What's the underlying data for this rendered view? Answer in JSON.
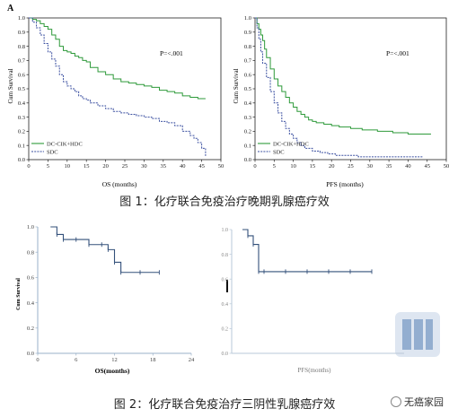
{
  "figure1": {
    "panel_label": "A",
    "caption": "图 1：化疗联合免疫治疗晚期乳腺癌疗效",
    "os": {
      "pvalue": "P=<.001",
      "xlabel": "OS (months)",
      "ylabel": "Cum Survival",
      "legend": [
        "DC-CIK+HDC",
        "SDC"
      ]
    },
    "pfs": {
      "pvalue": "P=<.001",
      "xlabel": "PFS (months)",
      "ylabel": "Cum Survival",
      "legend": [
        "DC-CIK+HDC",
        "SDC"
      ]
    }
  },
  "figure2": {
    "caption": "图 2：化疗联合免疫治疗三阴性乳腺癌疗效",
    "os": {
      "xlabel": "OS(months)",
      "ylabel": "Cum Survival"
    },
    "pfs": {
      "xlabel": "PFS(months)"
    }
  },
  "watermark": "无癌家园",
  "colors": {
    "green": "#2e9a3a",
    "blue": "#3a4fa0",
    "navy": "#33507a"
  },
  "chart_data": [
    {
      "type": "line",
      "title": "",
      "xlabel": "OS (months)",
      "ylabel": "Cum Survival",
      "xlim": [
        0,
        50
      ],
      "ylim": [
        0,
        1
      ],
      "xticks": [
        0,
        5,
        10,
        15,
        20,
        25,
        30,
        35,
        40,
        45,
        50
      ],
      "yticks": [
        0.0,
        0.1,
        0.2,
        0.3,
        0.4,
        0.5,
        0.6,
        0.7,
        0.8,
        0.9,
        1.0
      ],
      "step": true,
      "legend_position": "bottom-left",
      "series": [
        {
          "name": "DC-CIK+HDC",
          "color": "#2e9a3a",
          "x": [
            0,
            1,
            2,
            3,
            4,
            5,
            6,
            7,
            8,
            9,
            10,
            11,
            12,
            13,
            14,
            15,
            16,
            18,
            20,
            22,
            24,
            26,
            28,
            30,
            32,
            34,
            36,
            38,
            40,
            42,
            44,
            46
          ],
          "y": [
            1.0,
            0.99,
            0.98,
            0.96,
            0.94,
            0.92,
            0.88,
            0.85,
            0.8,
            0.77,
            0.76,
            0.75,
            0.73,
            0.72,
            0.7,
            0.69,
            0.65,
            0.62,
            0.6,
            0.57,
            0.55,
            0.54,
            0.53,
            0.52,
            0.51,
            0.49,
            0.48,
            0.47,
            0.45,
            0.44,
            0.43,
            0.43
          ]
        },
        {
          "name": "SDC",
          "color": "#3a4fa0",
          "x": [
            0,
            1,
            2,
            3,
            4,
            5,
            6,
            7,
            8,
            9,
            10,
            11,
            12,
            13,
            14,
            15,
            16,
            18,
            20,
            22,
            24,
            26,
            28,
            30,
            32,
            34,
            36,
            38,
            40,
            42,
            43,
            44,
            45,
            46
          ],
          "y": [
            1.0,
            0.97,
            0.93,
            0.88,
            0.82,
            0.76,
            0.71,
            0.66,
            0.6,
            0.55,
            0.52,
            0.5,
            0.48,
            0.45,
            0.43,
            0.42,
            0.4,
            0.38,
            0.36,
            0.34,
            0.33,
            0.32,
            0.31,
            0.3,
            0.29,
            0.27,
            0.26,
            0.24,
            0.2,
            0.17,
            0.15,
            0.12,
            0.08,
            0.02
          ]
        }
      ]
    },
    {
      "type": "line",
      "title": "",
      "xlabel": "PFS (months)",
      "ylabel": "Cum Survival",
      "xlim": [
        0,
        50
      ],
      "ylim": [
        0,
        1
      ],
      "xticks": [
        0,
        5,
        10,
        15,
        20,
        25,
        30,
        35,
        40,
        45,
        50
      ],
      "yticks": [
        0.0,
        0.1,
        0.2,
        0.3,
        0.4,
        0.5,
        0.6,
        0.7,
        0.8,
        0.9,
        1.0
      ],
      "step": true,
      "legend_position": "bottom-left",
      "series": [
        {
          "name": "DC-CIK+HDC",
          "color": "#2e9a3a",
          "x": [
            0,
            0.5,
            1,
            1.5,
            2,
            2.5,
            3,
            4,
            5,
            6,
            7,
            8,
            9,
            10,
            11,
            12,
            13,
            14,
            15,
            16,
            18,
            20,
            22,
            25,
            28,
            32,
            36,
            40,
            44,
            46
          ],
          "y": [
            1.0,
            0.96,
            0.92,
            0.88,
            0.84,
            0.78,
            0.72,
            0.64,
            0.57,
            0.52,
            0.48,
            0.44,
            0.4,
            0.37,
            0.34,
            0.32,
            0.3,
            0.28,
            0.27,
            0.26,
            0.25,
            0.24,
            0.23,
            0.22,
            0.21,
            0.2,
            0.19,
            0.18,
            0.18,
            0.18
          ]
        },
        {
          "name": "SDC",
          "color": "#3a4fa0",
          "x": [
            0,
            0.5,
            1,
            1.5,
            2,
            3,
            4,
            5,
            6,
            7,
            8,
            9,
            10,
            11,
            12,
            13,
            15,
            17,
            19,
            21,
            24,
            27,
            30,
            35,
            40,
            44
          ],
          "y": [
            1.0,
            0.93,
            0.85,
            0.76,
            0.68,
            0.58,
            0.48,
            0.4,
            0.33,
            0.27,
            0.22,
            0.18,
            0.15,
            0.12,
            0.1,
            0.08,
            0.06,
            0.05,
            0.04,
            0.03,
            0.03,
            0.02,
            0.02,
            0.02,
            0.02,
            0.02
          ]
        }
      ]
    },
    {
      "type": "line",
      "title": "",
      "xlabel": "OS(months)",
      "ylabel": "Cum Survival",
      "xlim": [
        0,
        24
      ],
      "ylim": [
        0,
        1
      ],
      "xticks": [
        0,
        6,
        12,
        18,
        24
      ],
      "yticks": [
        0.0,
        0.2,
        0.4,
        0.6,
        0.8,
        1.0
      ],
      "step": true,
      "series": [
        {
          "name": "",
          "color": "#33507a",
          "x": [
            2,
            3,
            4,
            6,
            8,
            10,
            11,
            12,
            13,
            16,
            19
          ],
          "y": [
            1.0,
            0.94,
            0.9,
            0.9,
            0.86,
            0.86,
            0.82,
            0.72,
            0.64,
            0.64,
            0.64
          ]
        }
      ]
    },
    {
      "type": "line",
      "title": "",
      "xlabel": "PFS(months)",
      "ylabel": "",
      "xlim": [
        0,
        16
      ],
      "ylim": [
        0,
        1
      ],
      "yticks": [
        0.0,
        0.2,
        0.4,
        0.6,
        0.8,
        1.0
      ],
      "step": true,
      "series": [
        {
          "name": "",
          "color": "#33507a",
          "x": [
            1.0,
            1.5,
            2.0,
            2.5,
            3,
            5,
            7,
            9,
            11,
            13
          ],
          "y": [
            1.0,
            0.95,
            0.88,
            0.66,
            0.66,
            0.66,
            0.66,
            0.66,
            0.66,
            0.66
          ]
        }
      ]
    }
  ]
}
